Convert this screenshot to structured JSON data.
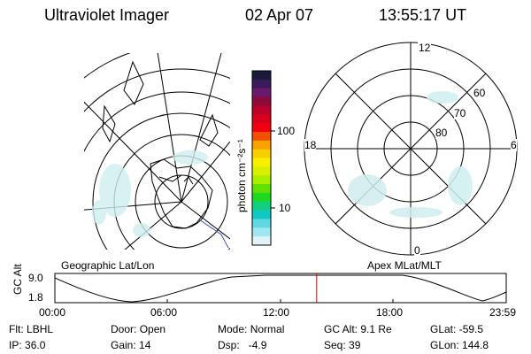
{
  "header": {
    "instrument": "Ultraviolet Imager",
    "date": "02 Apr 07",
    "time": "13:55:17 UT"
  },
  "colorbar": {
    "unit_label": "photon cm⁻²s⁻¹",
    "ticks": [
      "100",
      "10"
    ],
    "colors": [
      "#1a1a3a",
      "#3a1a5a",
      "#6a1a6a",
      "#8a0a3a",
      "#b8002a",
      "#d8001a",
      "#f00010",
      "#f05000",
      "#f8a000",
      "#f8d000",
      "#f8f000",
      "#d8f000",
      "#a8f000",
      "#60e000",
      "#20d820",
      "#10d080",
      "#10c8c8",
      "#60d8e0",
      "#a0e8f0",
      "#e0f4f8"
    ]
  },
  "left_map": {
    "caption": "Geographic Lat/Lon"
  },
  "right_map": {
    "caption": "Apex MLat/MLT",
    "mlt_labels": [
      "12",
      "18",
      "6",
      "0"
    ],
    "mlat_labels": [
      "60",
      "70",
      "80"
    ]
  },
  "altitude_plot": {
    "ylabel": "GC Alt",
    "y_ticks": [
      "9.0",
      "1.8"
    ],
    "x_ticks": [
      "00:00",
      "06:00",
      "12:00",
      "18:00",
      "23:59"
    ],
    "current_time_fraction": 0.58,
    "marker_color": "#cc0000"
  },
  "status": {
    "row1": [
      {
        "label": "Flt:",
        "value": "LBHL"
      },
      {
        "label": "Door:",
        "value": "Open"
      },
      {
        "label": "Mode:",
        "value": "Normal"
      },
      {
        "label": "GC Alt:",
        "value": "9.1 Re"
      },
      {
        "label": "GLat:",
        "value": "-59.5"
      }
    ],
    "row2": [
      {
        "label": "IP:",
        "value": "36.0"
      },
      {
        "label": "Gain:",
        "value": "14"
      },
      {
        "label": "Dsp:",
        "value": "-4.9"
      },
      {
        "label": "Seq:",
        "value": "39"
      },
      {
        "label": "GLon:",
        "value": "144.8"
      }
    ]
  }
}
